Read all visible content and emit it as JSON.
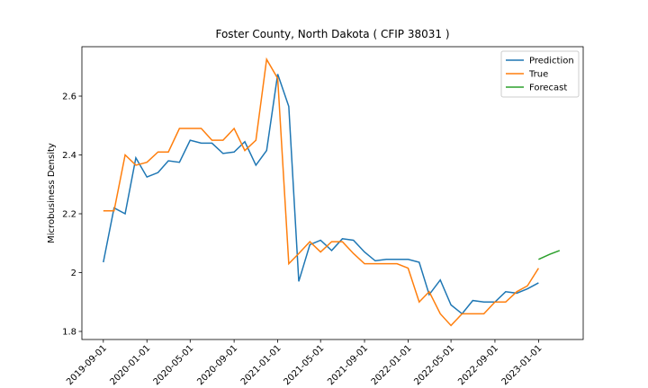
{
  "chart_data": {
    "type": "line",
    "title": "Foster County, North Dakota ( CFIP 38031 )",
    "y_label": "Microbusiness Density",
    "x": [
      "2019-09-01",
      "2019-10-01",
      "2019-11-01",
      "2019-12-01",
      "2020-01-01",
      "2020-02-01",
      "2020-03-01",
      "2020-04-01",
      "2020-05-01",
      "2020-06-01",
      "2020-07-01",
      "2020-08-01",
      "2020-09-01",
      "2020-10-01",
      "2020-11-01",
      "2020-12-01",
      "2021-01-01",
      "2021-02-01",
      "2021-03-01",
      "2021-04-01",
      "2021-05-01",
      "2021-06-01",
      "2021-07-01",
      "2021-08-01",
      "2021-09-01",
      "2021-10-01",
      "2021-11-01",
      "2021-12-01",
      "2022-01-01",
      "2022-02-01",
      "2022-03-01",
      "2022-04-01",
      "2022-05-01",
      "2022-06-01",
      "2022-07-01",
      "2022-08-01",
      "2022-09-01",
      "2022-10-01",
      "2022-11-01",
      "2022-12-01",
      "2023-01-01"
    ],
    "series": [
      {
        "name": "Prediction",
        "color": "#1f77b4",
        "values": [
          2.035,
          2.22,
          2.2,
          2.39,
          2.325,
          2.34,
          2.38,
          2.375,
          2.45,
          2.44,
          2.44,
          2.405,
          2.41,
          2.445,
          2.365,
          2.415,
          2.675,
          2.565,
          1.97,
          2.095,
          2.11,
          2.075,
          2.115,
          2.11,
          2.07,
          2.04,
          2.045,
          2.045,
          2.045,
          2.035,
          1.925,
          1.975,
          1.89,
          1.86,
          1.905,
          1.9,
          1.9,
          1.935,
          1.93,
          1.945,
          1.965
        ]
      },
      {
        "name": "True",
        "color": "#ff7f0e",
        "values": [
          2.21,
          2.21,
          2.4,
          2.365,
          2.375,
          2.41,
          2.41,
          2.49,
          2.49,
          2.49,
          2.45,
          2.45,
          2.49,
          2.415,
          2.45,
          2.725,
          2.66,
          2.03,
          2.065,
          2.105,
          2.07,
          2.105,
          2.105,
          2.065,
          2.03,
          2.03,
          2.03,
          2.03,
          2.015,
          1.9,
          1.935,
          1.86,
          1.82,
          1.86,
          1.86,
          1.86,
          1.9,
          1.9,
          1.935,
          1.955,
          2.015
        ]
      },
      {
        "name": "Forecast",
        "color": "#2ca02c",
        "x": [
          "2023-01-01",
          "2023-02-01",
          "2023-03-01"
        ],
        "values": [
          2.045,
          2.062,
          2.075
        ]
      }
    ],
    "xlim": [
      "2019-07-03",
      "2023-05-06"
    ],
    "xticks": [
      "2019-09-01",
      "2020-01-01",
      "2020-05-01",
      "2020-09-01",
      "2021-01-01",
      "2021-05-01",
      "2021-09-01",
      "2022-01-01",
      "2022-05-01",
      "2022-09-01",
      "2023-01-01"
    ],
    "ylim": [
      1.7725,
      2.768
    ],
    "yticks": [
      1.8,
      2.0,
      2.2,
      2.4,
      2.6
    ],
    "legend": "upper right"
  }
}
